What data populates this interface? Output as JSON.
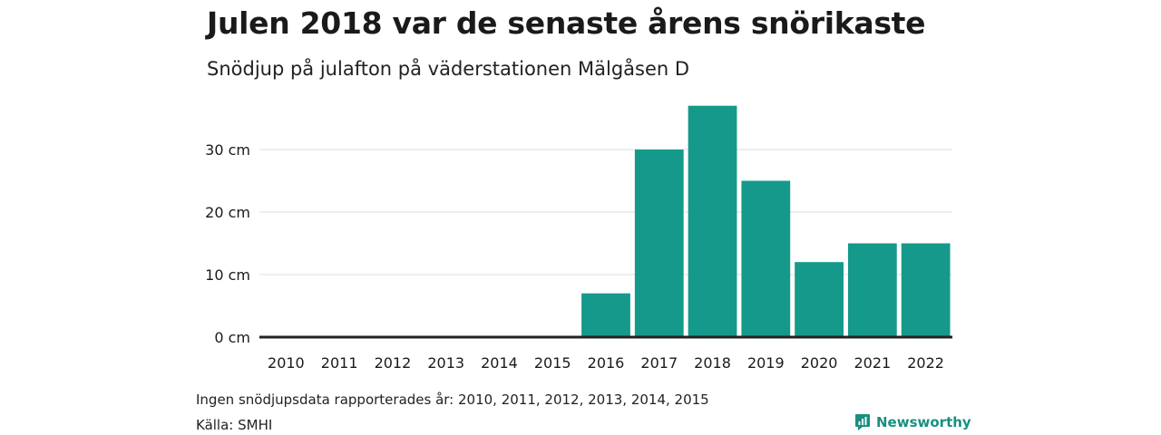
{
  "title": "Julen 2018 var de senaste årens snörikaste",
  "subtitle": "Snödjup på julafton på väderstationen Mälgåsen D",
  "footnote": "Ingen snödjupsdata rapporterades år: 2010, 2011, 2012, 2013, 2014, 2015",
  "source": "Källa: SMHI",
  "brand": {
    "name": "Newsworthy",
    "icon": "newsworthy-logo-icon"
  },
  "colors": {
    "bar": "#14998a",
    "brand": "#18907f",
    "grid": "#dddddd",
    "axis": "#222222"
  },
  "chart_data": {
    "type": "bar",
    "categories": [
      "2010",
      "2011",
      "2012",
      "2013",
      "2014",
      "2015",
      "2016",
      "2017",
      "2018",
      "2019",
      "2020",
      "2021",
      "2022"
    ],
    "values": [
      0,
      0,
      0,
      0,
      0,
      0,
      7,
      30,
      37,
      25,
      12,
      15,
      15
    ],
    "ylim": [
      0,
      40
    ],
    "yticks": [
      0,
      10,
      20,
      30
    ],
    "ytick_labels": [
      "0 cm",
      "10 cm",
      "20 cm",
      "30 cm"
    ],
    "grid": true,
    "xlabel": "",
    "ylabel": ""
  }
}
